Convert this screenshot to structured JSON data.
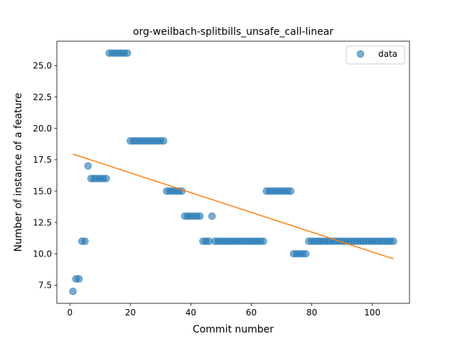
{
  "chart_data": {
    "type": "scatter",
    "title": "org-weilbach-splitbills_unsafe_call-linear",
    "xlabel": "Commit number",
    "ylabel": "Number of instance of a feature",
    "xlim": [
      -4.3,
      112.3
    ],
    "ylim": [
      6.05,
      26.95
    ],
    "xticks": [
      0,
      20,
      40,
      60,
      80,
      100
    ],
    "yticks": [
      7.5,
      10.0,
      12.5,
      15.0,
      17.5,
      20.0,
      22.5,
      25.0
    ],
    "ytick_labels": [
      "7.5",
      "10.0",
      "12.5",
      "15.0",
      "17.5",
      "20.0",
      "22.5",
      "25.0"
    ],
    "grid": false,
    "legend_position": "top-right",
    "series": [
      {
        "name": "data",
        "kind": "scatter",
        "color": "#1f77b4",
        "x": [
          1,
          2,
          3,
          4,
          5,
          6,
          7,
          8,
          9,
          10,
          11,
          12,
          13,
          14,
          15,
          16,
          17,
          18,
          19,
          20,
          21,
          22,
          23,
          24,
          25,
          26,
          27,
          28,
          29,
          30,
          31,
          32,
          33,
          34,
          35,
          36,
          37,
          38,
          39,
          40,
          41,
          42,
          43,
          44,
          45,
          46,
          47,
          48,
          49,
          50,
          51,
          52,
          53,
          54,
          55,
          56,
          57,
          58,
          59,
          60,
          61,
          62,
          63,
          64,
          65,
          66,
          67,
          68,
          69,
          70,
          71,
          72,
          73,
          74,
          75,
          76,
          77,
          78,
          79,
          80,
          81,
          82,
          83,
          84,
          85,
          86,
          87,
          88,
          89,
          90,
          91,
          92,
          93,
          94,
          95,
          96,
          97,
          98,
          99,
          100,
          101,
          102,
          103,
          104,
          105,
          106,
          107
        ],
        "y": [
          7,
          8,
          8,
          11,
          11,
          17,
          16,
          16,
          16,
          16,
          16,
          16,
          26,
          26,
          26,
          26,
          26,
          26,
          26,
          19,
          19,
          19,
          19,
          19,
          19,
          19,
          19,
          19,
          19,
          19,
          19,
          15,
          15,
          15,
          15,
          15,
          15,
          13,
          13,
          13,
          13,
          13,
          13,
          11,
          11,
          11,
          13,
          11,
          11,
          11,
          11,
          11,
          11,
          11,
          11,
          11,
          11,
          11,
          11,
          11,
          11,
          11,
          11,
          11,
          15,
          15,
          15,
          15,
          15,
          15,
          15,
          15,
          15,
          10,
          10,
          10,
          10,
          10,
          11,
          11,
          11,
          11,
          11,
          11,
          11,
          11,
          11,
          11,
          11,
          11,
          11,
          11,
          11,
          11,
          11,
          11,
          11,
          11,
          11,
          11,
          11,
          11,
          11,
          11,
          11,
          11,
          11
        ]
      },
      {
        "kind": "line",
        "color": "#ff7f0e",
        "x": [
          1,
          107
        ],
        "y": [
          17.95,
          9.6
        ]
      }
    ]
  }
}
